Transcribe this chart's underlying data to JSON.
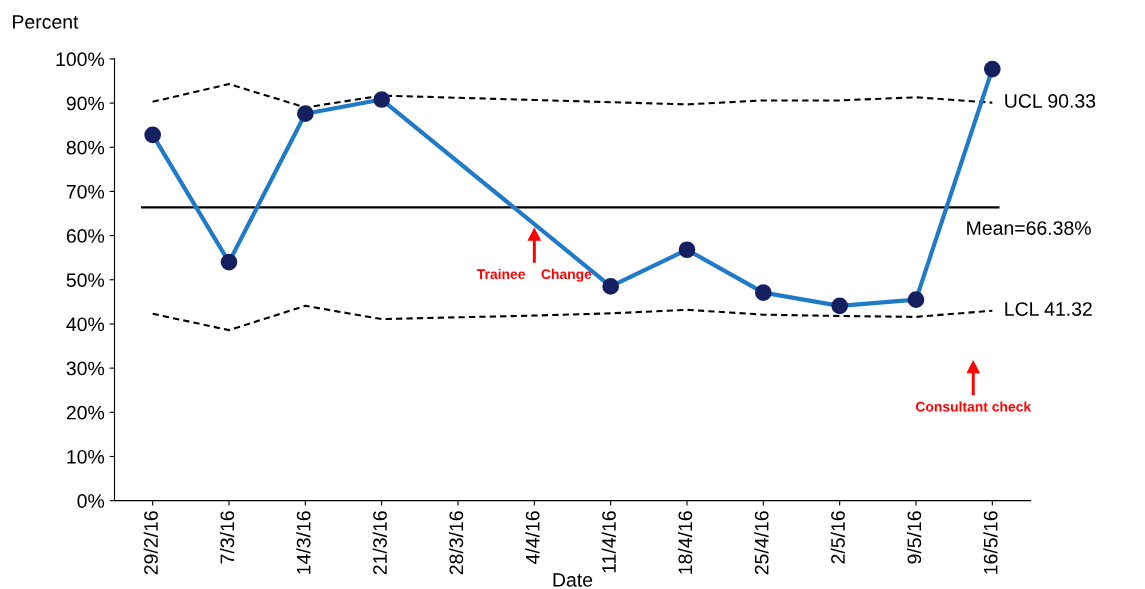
{
  "chart_data": {
    "type": "line",
    "ylabel": "Percent",
    "xlabel": "Date",
    "categories": [
      "29/2/16",
      "7/3/16",
      "14/3/16",
      "21/3/16",
      "28/3/16",
      "4/4/16",
      "11/4/16",
      "18/4/16",
      "25/4/16",
      "2/5/16",
      "9/5/16",
      "16/5/16"
    ],
    "series": [
      {
        "color": "#1f7ac8",
        "marker": "circle",
        "line_style": "solid",
        "values": [
          82.8,
          54.0,
          87.6,
          90.8,
          null,
          null,
          48.5,
          56.8,
          47.1,
          44.1,
          45.5,
          97.7
        ]
      },
      {
        "name": "UCL 90.33",
        "color": "#000000",
        "marker": "none",
        "line_style": "dashed",
        "values": [
          90.3,
          94.3,
          89.0,
          91.7,
          91.2,
          90.7,
          90.2,
          89.7,
          90.6,
          90.6,
          91.3,
          90.1
        ]
      },
      {
        "name": "LCL 41.32",
        "color": "#000000",
        "marker": "none",
        "line_style": "dashed",
        "values": [
          42.3,
          38.6,
          44.1,
          41.1,
          41.5,
          41.9,
          42.4,
          43.2,
          42.1,
          41.8,
          41.6,
          43.0
        ]
      }
    ],
    "ref_lines": [
      {
        "axis": "y",
        "value": 66.38,
        "label": "Mean=66.38%",
        "color": "#000000",
        "line_style": "solid"
      }
    ],
    "annotations": [
      "Trainee    Change",
      "Consultant check"
    ],
    "ylim": [
      0,
      100
    ],
    "yticks": [
      {
        "value": 0,
        "label": "0%"
      },
      {
        "value": 10,
        "label": "10%"
      },
      {
        "value": 20,
        "label": "20%"
      },
      {
        "value": 30,
        "label": "30%"
      },
      {
        "value": 40,
        "label": "40%"
      },
      {
        "value": 50,
        "label": "50%"
      },
      {
        "value": 60,
        "label": "60%"
      },
      {
        "value": 70,
        "label": "70%"
      },
      {
        "value": 80,
        "label": "80%"
      },
      {
        "value": 90,
        "label": "90%"
      },
      {
        "value": 100,
        "label": "100%"
      }
    ],
    "grid": false,
    "legend": false
  }
}
